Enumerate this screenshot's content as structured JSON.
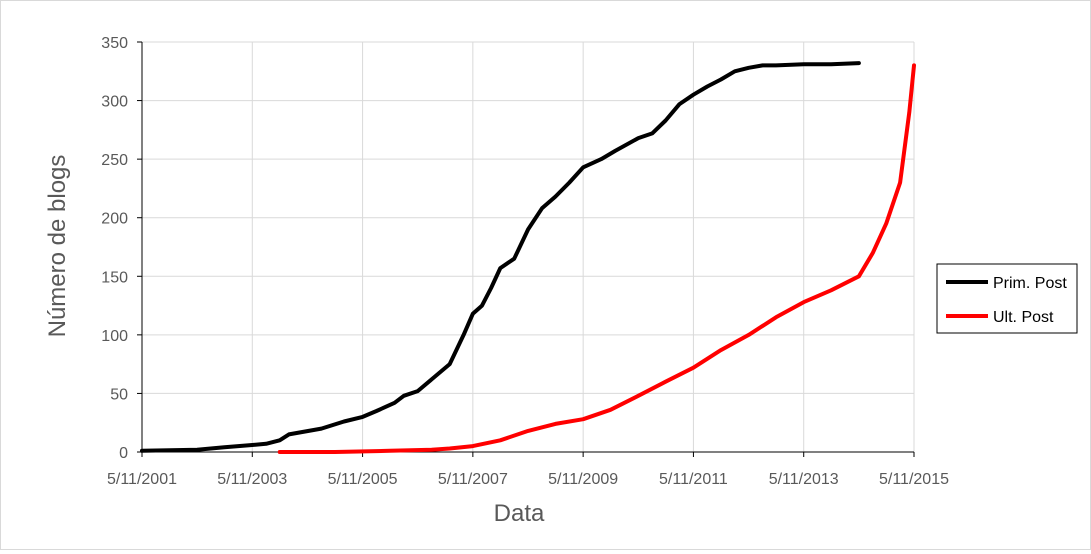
{
  "chart_data": {
    "type": "line",
    "title": "",
    "xlabel": "Data",
    "ylabel": "Número de blogs",
    "x_ticks": [
      "5/11/2001",
      "5/11/2003",
      "5/11/2005",
      "5/11/2007",
      "5/11/2009",
      "5/11/2011",
      "5/11/2013",
      "5/11/2015"
    ],
    "y_ticks": [
      "0",
      "50",
      "100",
      "150",
      "200",
      "250",
      "300",
      "350"
    ],
    "xlim": [
      "2001-11-05",
      "2015-11-05"
    ],
    "ylim": [
      0,
      350
    ],
    "grid": true,
    "legend_position": "right",
    "series": [
      {
        "name": "Prim. Post",
        "color": "#000000",
        "x": [
          "2001-11-05",
          "2002-11-05",
          "2003-05-05",
          "2003-11-05",
          "2004-02-05",
          "2004-05-05",
          "2004-07-05",
          "2005-02-05",
          "2005-07-05",
          "2005-11-05",
          "2006-02-05",
          "2006-06-05",
          "2006-08-05",
          "2006-11-05",
          "2007-02-05",
          "2007-06-05",
          "2007-09-05",
          "2007-11-05",
          "2008-01-05",
          "2008-03-05",
          "2008-05-05",
          "2008-08-05",
          "2008-11-05",
          "2009-02-05",
          "2009-05-05",
          "2009-08-05",
          "2009-11-05",
          "2010-03-05",
          "2010-06-05",
          "2010-11-05",
          "2011-02-05",
          "2011-05-05",
          "2011-08-05",
          "2011-11-05",
          "2012-02-05",
          "2012-05-05",
          "2012-08-05",
          "2012-11-05",
          "2013-02-05",
          "2013-05-05",
          "2013-11-05",
          "2014-05-05",
          "2014-11-05"
        ],
        "values": [
          1,
          2,
          4,
          6,
          7,
          10,
          15,
          20,
          26,
          30,
          35,
          42,
          48,
          52,
          62,
          75,
          100,
          118,
          125,
          140,
          157,
          165,
          190,
          208,
          218,
          230,
          243,
          250,
          257,
          268,
          272,
          283,
          297,
          305,
          312,
          318,
          325,
          328,
          330,
          330,
          331,
          331,
          332
        ]
      },
      {
        "name": "Ult. Post",
        "color": "#ff0000",
        "x": [
          "2004-05-05",
          "2005-05-05",
          "2006-05-05",
          "2007-02-05",
          "2007-06-05",
          "2007-11-05",
          "2008-05-05",
          "2008-11-05",
          "2009-05-05",
          "2009-11-05",
          "2010-05-05",
          "2010-11-05",
          "2011-05-05",
          "2011-11-05",
          "2012-05-05",
          "2012-11-05",
          "2013-05-05",
          "2013-11-05",
          "2014-05-05",
          "2014-11-05",
          "2015-02-05",
          "2015-05-05",
          "2015-08-05",
          "2015-10-05",
          "2015-11-05"
        ],
        "values": [
          0,
          0,
          1,
          2,
          3,
          5,
          10,
          18,
          24,
          28,
          36,
          48,
          60,
          72,
          87,
          100,
          115,
          128,
          138,
          150,
          170,
          195,
          230,
          290,
          330
        ]
      }
    ]
  }
}
